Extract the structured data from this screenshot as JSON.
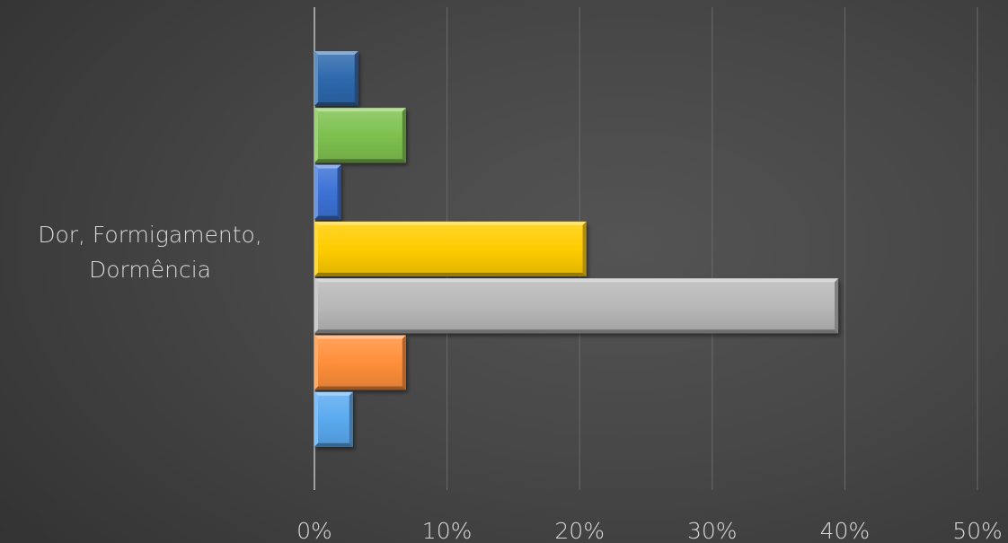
{
  "chart_data": {
    "type": "bar",
    "orientation": "horizontal",
    "categories": [
      "Dor, Formigamento, Dormência"
    ],
    "category_label_lines": [
      "Dor, Formigamento,",
      "Dormência"
    ],
    "series": [
      {
        "values": [
          3.3
        ],
        "color": "#2e69ad"
      },
      {
        "values": [
          6.9
        ],
        "color": "#7ec14f"
      },
      {
        "values": [
          2.0
        ],
        "color": "#3c72d6"
      },
      {
        "values": [
          20.5
        ],
        "color": "#ffcc00"
      },
      {
        "values": [
          39.5
        ],
        "color": "#b8b8b8"
      },
      {
        "values": [
          6.9
        ],
        "color": "#ff8f3a"
      },
      {
        "values": [
          2.9
        ],
        "color": "#5aaaf0"
      }
    ],
    "xlim": [
      0,
      50
    ],
    "x_ticks": [
      0,
      10,
      20,
      30,
      40,
      50
    ],
    "x_tick_labels": [
      "0%",
      "10%",
      "20%",
      "30%",
      "40%",
      "50%"
    ],
    "grid": true,
    "legend": "none",
    "title": "",
    "xlabel": "",
    "ylabel": ""
  }
}
